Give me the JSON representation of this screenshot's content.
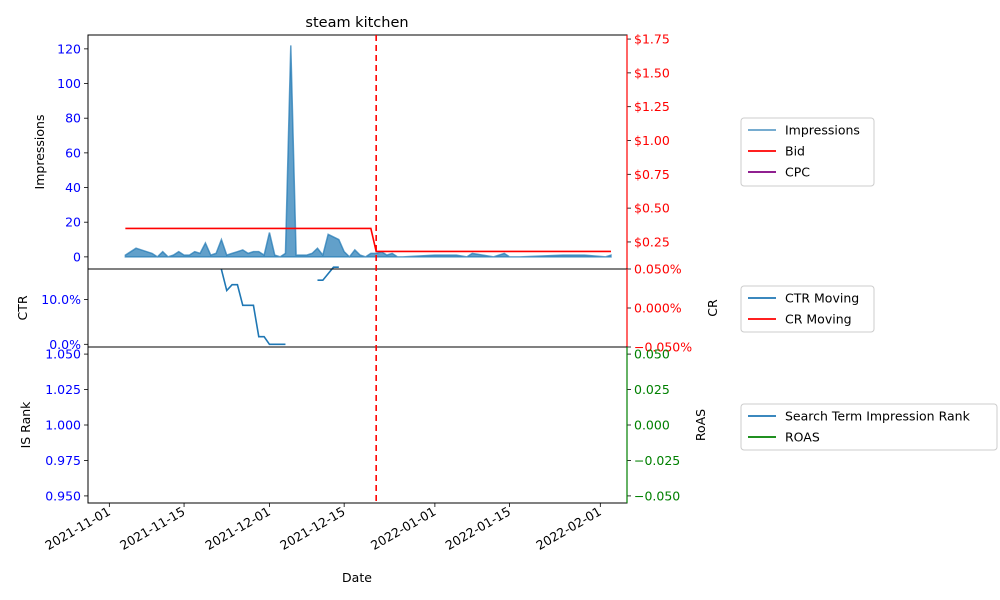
{
  "chart_data": {
    "title": "steam kitchen",
    "xlabel": "Date",
    "x_ticks": [
      "2021-11-01",
      "2021-11-15",
      "2021-12-01",
      "2021-12-15",
      "2022-01-01",
      "2022-01-15",
      "2022-02-01"
    ],
    "event_date": "2021-12-21",
    "panels": [
      {
        "type": "area+line",
        "left_label": "Impressions",
        "left_ticks": [
          "0",
          "20",
          "40",
          "60",
          "80",
          "100",
          "120"
        ],
        "left_range": [
          -7,
          128
        ],
        "left_color": "#0000ff",
        "right_ticks": [
          "$0.25",
          "$0.50",
          "$0.75",
          "$1.00",
          "$1.25",
          "$1.50",
          "$1.75"
        ],
        "right_range": [
          0.05,
          1.78
        ],
        "right_color": "#ff0000",
        "legend": [
          "Impressions",
          "Bid",
          "CPC"
        ],
        "series": [
          {
            "name": "Impressions",
            "axis": "left",
            "color": "#1f77b4",
            "points": [
              [
                "2021-11-04",
                1
              ],
              [
                "2021-11-06",
                5
              ],
              [
                "2021-11-08",
                3
              ],
              [
                "2021-11-09",
                2
              ],
              [
                "2021-11-10",
                0
              ],
              [
                "2021-11-11",
                3
              ],
              [
                "2021-11-12",
                0
              ],
              [
                "2021-11-13",
                1
              ],
              [
                "2021-11-14",
                3
              ],
              [
                "2021-11-15",
                1
              ],
              [
                "2021-11-16",
                1
              ],
              [
                "2021-11-17",
                3
              ],
              [
                "2021-11-18",
                2
              ],
              [
                "2021-11-19",
                8
              ],
              [
                "2021-11-20",
                1
              ],
              [
                "2021-11-21",
                2
              ],
              [
                "2021-11-22",
                10
              ],
              [
                "2021-11-23",
                1
              ],
              [
                "2021-11-24",
                2
              ],
              [
                "2021-11-25",
                3
              ],
              [
                "2021-11-26",
                4
              ],
              [
                "2021-11-27",
                2
              ],
              [
                "2021-11-28",
                3
              ],
              [
                "2021-11-29",
                3
              ],
              [
                "2021-11-30",
                1
              ],
              [
                "2021-12-01",
                14
              ],
              [
                "2021-12-02",
                1
              ],
              [
                "2021-12-03",
                0
              ],
              [
                "2021-12-04",
                2
              ],
              [
                "2021-12-05",
                122
              ],
              [
                "2021-12-06",
                1
              ],
              [
                "2021-12-07",
                1
              ],
              [
                "2021-12-08",
                1
              ],
              [
                "2021-12-09",
                2
              ],
              [
                "2021-12-10",
                5
              ],
              [
                "2021-12-11",
                1
              ],
              [
                "2021-12-12",
                13
              ],
              [
                "2021-12-14",
                10
              ],
              [
                "2021-12-15",
                3
              ],
              [
                "2021-12-16",
                0
              ],
              [
                "2021-12-17",
                4
              ],
              [
                "2021-12-18",
                1
              ],
              [
                "2021-12-19",
                0
              ],
              [
                "2021-12-20",
                2
              ],
              [
                "2021-12-21",
                2
              ],
              [
                "2021-12-22",
                3
              ],
              [
                "2021-12-23",
                1
              ],
              [
                "2021-12-24",
                2
              ],
              [
                "2021-12-25",
                0
              ],
              [
                "2021-12-26",
                0
              ],
              [
                "2022-01-01",
                1
              ],
              [
                "2022-01-05",
                1
              ],
              [
                "2022-01-07",
                0
              ],
              [
                "2022-01-08",
                2
              ],
              [
                "2022-01-10",
                1
              ],
              [
                "2022-01-12",
                0
              ],
              [
                "2022-01-14",
                2
              ],
              [
                "2022-01-15",
                0
              ],
              [
                "2022-01-17",
                0
              ],
              [
                "2022-01-25",
                1
              ],
              [
                "2022-01-29",
                1
              ],
              [
                "2022-02-02",
                0
              ],
              [
                "2022-02-03",
                1
              ]
            ]
          },
          {
            "name": "Bid",
            "axis": "right",
            "color": "#ff0000",
            "points": [
              [
                "2021-11-04",
                0.35
              ],
              [
                "2021-12-20",
                0.35
              ],
              [
                "2021-12-21",
                0.18
              ],
              [
                "2022-02-03",
                0.18
              ]
            ]
          },
          {
            "name": "CPC",
            "axis": "right",
            "color": "#800080",
            "points": []
          }
        ]
      },
      {
        "type": "line",
        "left_label": "CTR",
        "left_ticks": [
          "0.0%",
          "10.0%"
        ],
        "left_range": [
          -0.006,
          0.168
        ],
        "left_color": "#0000ff",
        "right_label": "CR",
        "right_ticks": [
          "−0.050%",
          "0.000%",
          "0.050%"
        ],
        "right_range": [
          -0.05,
          0.05
        ],
        "right_color": "#ff0000",
        "legend": [
          "CTR Moving",
          "CR Moving"
        ],
        "series": [
          {
            "name": "CTR Moving",
            "axis": "left",
            "color": "#1f77b4",
            "segments": [
              [
                [
                  "2021-11-22",
                  0.167
                ],
                [
                  "2021-11-23",
                  0.12
                ],
                [
                  "2021-11-24",
                  0.133
                ],
                [
                  "2021-11-25",
                  0.133
                ],
                [
                  "2021-11-26",
                  0.087
                ],
                [
                  "2021-11-27",
                  0.087
                ],
                [
                  "2021-11-28",
                  0.087
                ],
                [
                  "2021-11-29",
                  0.017
                ],
                [
                  "2021-11-30",
                  0.017
                ],
                [
                  "2021-12-01",
                  0.0
                ],
                [
                  "2021-12-02",
                  0.0
                ],
                [
                  "2021-12-04",
                  0.0
                ]
              ],
              [
                [
                  "2021-12-10",
                  0.143
                ],
                [
                  "2021-12-11",
                  0.143
                ],
                [
                  "2021-12-13",
                  0.172
                ],
                [
                  "2021-12-14",
                  0.172
                ]
              ]
            ]
          },
          {
            "name": "CR Moving",
            "axis": "right",
            "color": "#ff0000",
            "segments": []
          }
        ]
      },
      {
        "type": "line",
        "left_label": "IS Rank",
        "left_ticks": [
          "0.950",
          "0.975",
          "1.000",
          "1.025",
          "1.050"
        ],
        "left_range": [
          0.945,
          1.055
        ],
        "left_color": "#0000ff",
        "right_label": "RoAS",
        "right_ticks": [
          "−0.050",
          "−0.025",
          "0.000",
          "0.025",
          "0.050"
        ],
        "right_range": [
          -0.055,
          0.055
        ],
        "right_color": "#008000",
        "legend": [
          "Search Term Impression Rank",
          "ROAS"
        ],
        "series": [
          {
            "name": "Search Term Impression Rank",
            "axis": "left",
            "color": "#1f77b4",
            "segments": []
          },
          {
            "name": "ROAS",
            "axis": "right",
            "color": "#008000",
            "segments": []
          }
        ]
      }
    ]
  }
}
